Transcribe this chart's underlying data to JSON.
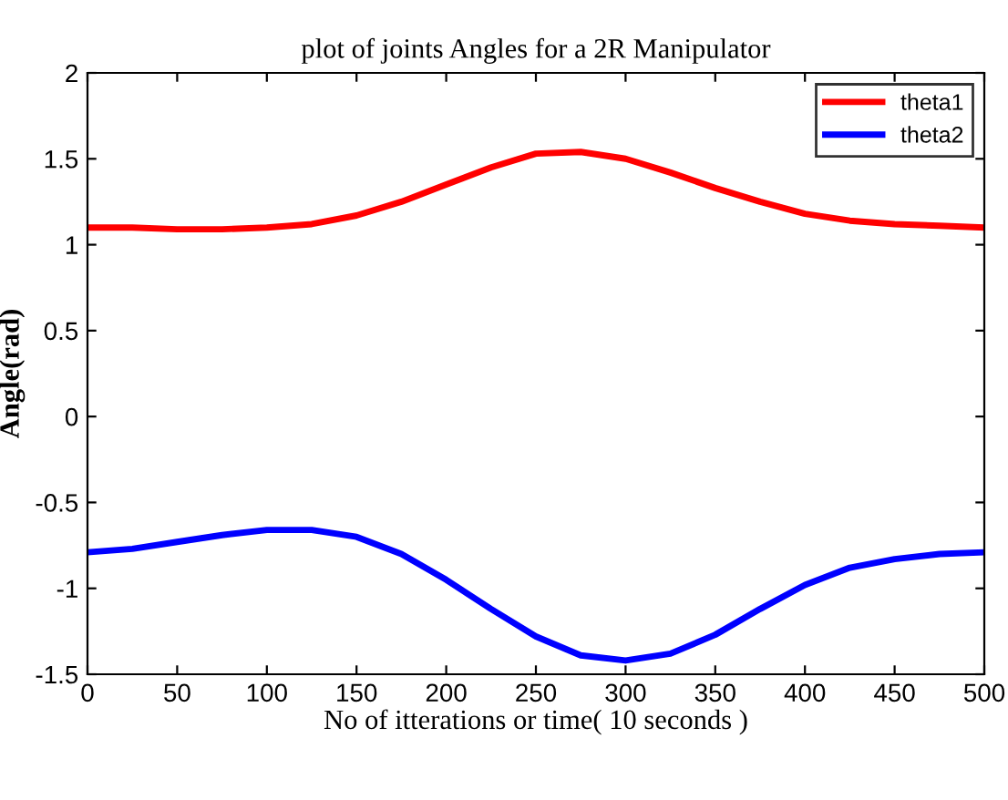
{
  "chart_data": {
    "type": "line",
    "title": "plot of joints Angles for a 2R Manipulator",
    "xlabel": "No of itterations or time( 10 seconds )",
    "ylabel": "Angle(rad)",
    "x": [
      0,
      25,
      50,
      75,
      100,
      125,
      150,
      175,
      200,
      225,
      250,
      275,
      300,
      325,
      350,
      375,
      400,
      425,
      450,
      475,
      500
    ],
    "series": [
      {
        "name": "theta1",
        "color": "#ff0000",
        "values": [
          1.1,
          1.1,
          1.09,
          1.09,
          1.1,
          1.12,
          1.17,
          1.25,
          1.35,
          1.45,
          1.53,
          1.54,
          1.5,
          1.42,
          1.33,
          1.25,
          1.18,
          1.14,
          1.12,
          1.11,
          1.1
        ]
      },
      {
        "name": "theta2",
        "color": "#0000ff",
        "values": [
          -0.79,
          -0.77,
          -0.73,
          -0.69,
          -0.66,
          -0.66,
          -0.7,
          -0.8,
          -0.95,
          -1.12,
          -1.28,
          -1.39,
          -1.42,
          -1.38,
          -1.27,
          -1.12,
          -0.98,
          -0.88,
          -0.83,
          -0.8,
          -0.79
        ]
      }
    ],
    "xlim": [
      0,
      500
    ],
    "xticks": [
      0,
      50,
      100,
      150,
      200,
      250,
      300,
      350,
      400,
      450,
      500
    ],
    "ylim": [
      -1.5,
      2
    ],
    "yticks": [
      -1.5,
      -1,
      -0.5,
      0,
      0.5,
      1,
      1.5,
      2
    ],
    "grid": false,
    "legend": "top right",
    "line_style": "solid",
    "marker": "none"
  }
}
